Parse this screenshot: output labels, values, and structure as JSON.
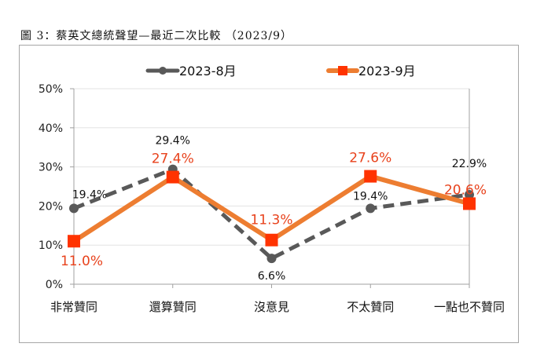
{
  "figure_title": "圖 3：蔡英文總統聲望—最近二次比較 （2023/9）",
  "chart_data": {
    "type": "line",
    "title": "圖 3：蔡英文總統聲望—最近二次比較 （2023/9）",
    "xlabel": "",
    "ylabel": "",
    "categories": [
      "非常贊同",
      "還算贊同",
      "沒意見",
      "不太贊同",
      "一點也不贊同"
    ],
    "series": [
      {
        "name": "2023-8月",
        "values": [
          19.4,
          29.4,
          6.6,
          19.4,
          22.9
        ],
        "color": "#595959",
        "style": "dashed",
        "marker": "circle",
        "labels": [
          "19.4%",
          "29.4%",
          "6.6%",
          "19.4%",
          "22.9%"
        ],
        "label_color": "#111111"
      },
      {
        "name": "2023-9月",
        "values": [
          11.0,
          27.4,
          11.3,
          27.6,
          20.6
        ],
        "color": "#ed7d31",
        "style": "solid",
        "marker": "square",
        "marker_color": "#ff3300",
        "labels": [
          "11.0%",
          "27.4%",
          "11.3%",
          "27.6%",
          "20.6%"
        ],
        "label_color": "#e8421c"
      }
    ],
    "ylim": [
      0,
      50
    ],
    "yticks": [
      0,
      10,
      20,
      30,
      40,
      50
    ],
    "ytick_labels": [
      "0%",
      "10%",
      "20%",
      "30%",
      "40%",
      "50%"
    ],
    "grid": true,
    "legend_position": "top-center"
  }
}
